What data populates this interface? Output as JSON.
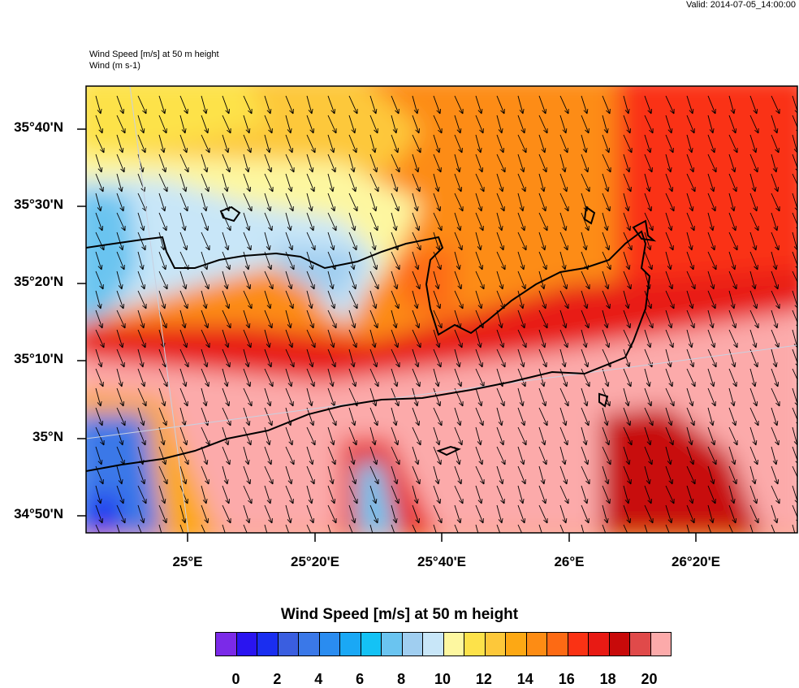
{
  "header": {
    "valid": "Valid: 2014-07-05_14:00:00"
  },
  "titles": {
    "line1": "Wind Speed [m/s] at 50 m height",
    "line2": "Wind   (m s-1)"
  },
  "map": {
    "lat_labels": [
      "35°40'N",
      "35°30'N",
      "35°20'N",
      "35°10'N",
      "35°N",
      "34°50'N"
    ],
    "lon_labels": [
      "25°E",
      "25°20'E",
      "25°40'E",
      "26°E",
      "26°20'E"
    ]
  },
  "colorbar": {
    "title": "Wind Speed [m/s] at 50 m height",
    "colors": [
      "#7b2ae8",
      "#2a14f0",
      "#1a2ef0",
      "#3a5ee0",
      "#3a78e8",
      "#2a8cf0",
      "#1aa8f5",
      "#14c2f5",
      "#6ac4f0",
      "#a0cef0",
      "#c8e6f8",
      "#fdf7a0",
      "#fde24a",
      "#fdc83a",
      "#fda814",
      "#fd8c14",
      "#fd6a14",
      "#fa3214",
      "#e81a14",
      "#c80a0a",
      "#e04a4a",
      "#fcaaaa"
    ],
    "labels": [
      "0",
      "2",
      "4",
      "6",
      "8",
      "10",
      "12",
      "14",
      "16",
      "18",
      "20"
    ]
  }
}
